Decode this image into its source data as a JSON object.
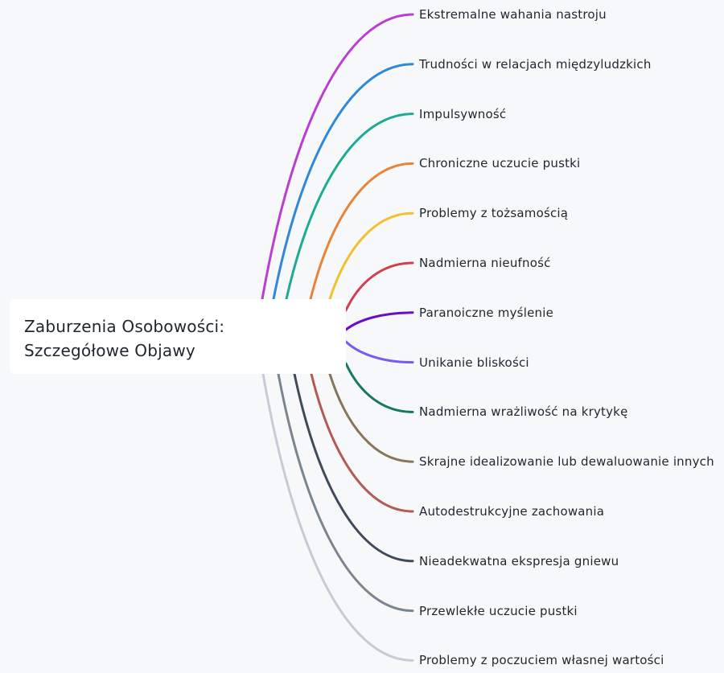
{
  "root": {
    "title": "Zaburzenia Osobowości: Szczegółowe Objawy"
  },
  "branches": [
    {
      "label": "Ekstremalne wahania nastroju",
      "color": "#b83fd1"
    },
    {
      "label": "Trudności w relacjach międzyludzkich",
      "color": "#2f88d8"
    },
    {
      "label": "Impulsywność",
      "color": "#1eaa94"
    },
    {
      "label": "Chroniczne uczucie pustki",
      "color": "#e8843a"
    },
    {
      "label": "Problemy z tożsamością",
      "color": "#f2c12e"
    },
    {
      "label": "Nadmierna nieufność",
      "color": "#d14050"
    },
    {
      "label": "Paranoiczne myślenie",
      "color": "#6a0dc7"
    },
    {
      "label": "Unikanie bliskości",
      "color": "#7a5af0"
    },
    {
      "label": "Nadmierna wrażliwość na krytykę",
      "color": "#157a5c"
    },
    {
      "label": "Skrajne idealizowanie lub dewaluowanie innych",
      "color": "#87775a"
    },
    {
      "label": "Autodestrukcyjne zachowania",
      "color": "#b35a55"
    },
    {
      "label": "Nieadekwatna ekspresja gniewu",
      "color": "#3f4a5a"
    },
    {
      "label": "Przewlekłe uczucie pustki",
      "color": "#7a8590"
    },
    {
      "label": "Problemy z poczuciem własnej wartości",
      "color": "#c5ccd5"
    }
  ]
}
